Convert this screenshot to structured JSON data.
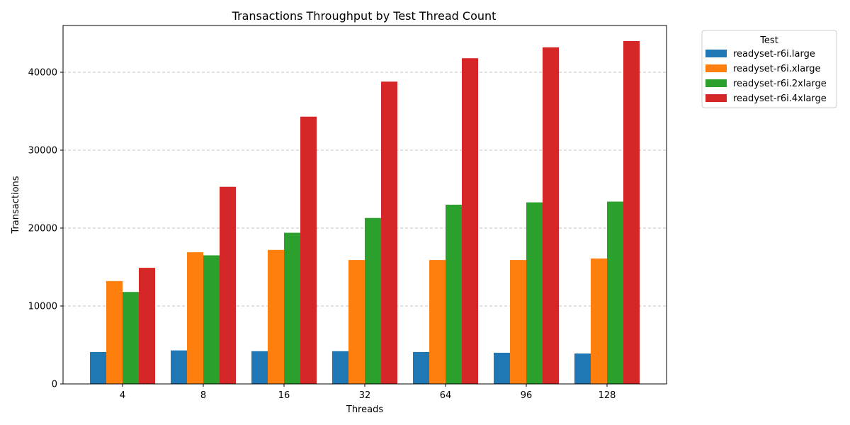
{
  "chart_data": {
    "type": "bar",
    "title": "Transactions Throughput by Test Thread Count",
    "xlabel": "Threads",
    "ylabel": "Transactions",
    "categories": [
      "4",
      "8",
      "16",
      "32",
      "64",
      "96",
      "128"
    ],
    "ylim": [
      0,
      46000
    ],
    "yticks": [
      0,
      10000,
      20000,
      30000,
      40000
    ],
    "grid": "y-dashed",
    "legend": {
      "title": "Test",
      "placement": "outside-top-right"
    },
    "series": [
      {
        "name": "readyset-r6i.large",
        "color": "#1f77b4",
        "values": [
          4100,
          4300,
          4200,
          4200,
          4100,
          4000,
          3900
        ]
      },
      {
        "name": "readyset-r6i.xlarge",
        "color": "#ff7f0e",
        "values": [
          13200,
          16900,
          17200,
          15900,
          15900,
          15900,
          16100
        ]
      },
      {
        "name": "readyset-r6i.2xlarge",
        "color": "#2ca02c",
        "values": [
          11800,
          16500,
          19400,
          21300,
          23000,
          23300,
          23400
        ]
      },
      {
        "name": "readyset-r6i.4xlarge",
        "color": "#d62728",
        "values": [
          14900,
          25300,
          34300,
          38800,
          41800,
          43200,
          44000
        ]
      }
    ]
  }
}
